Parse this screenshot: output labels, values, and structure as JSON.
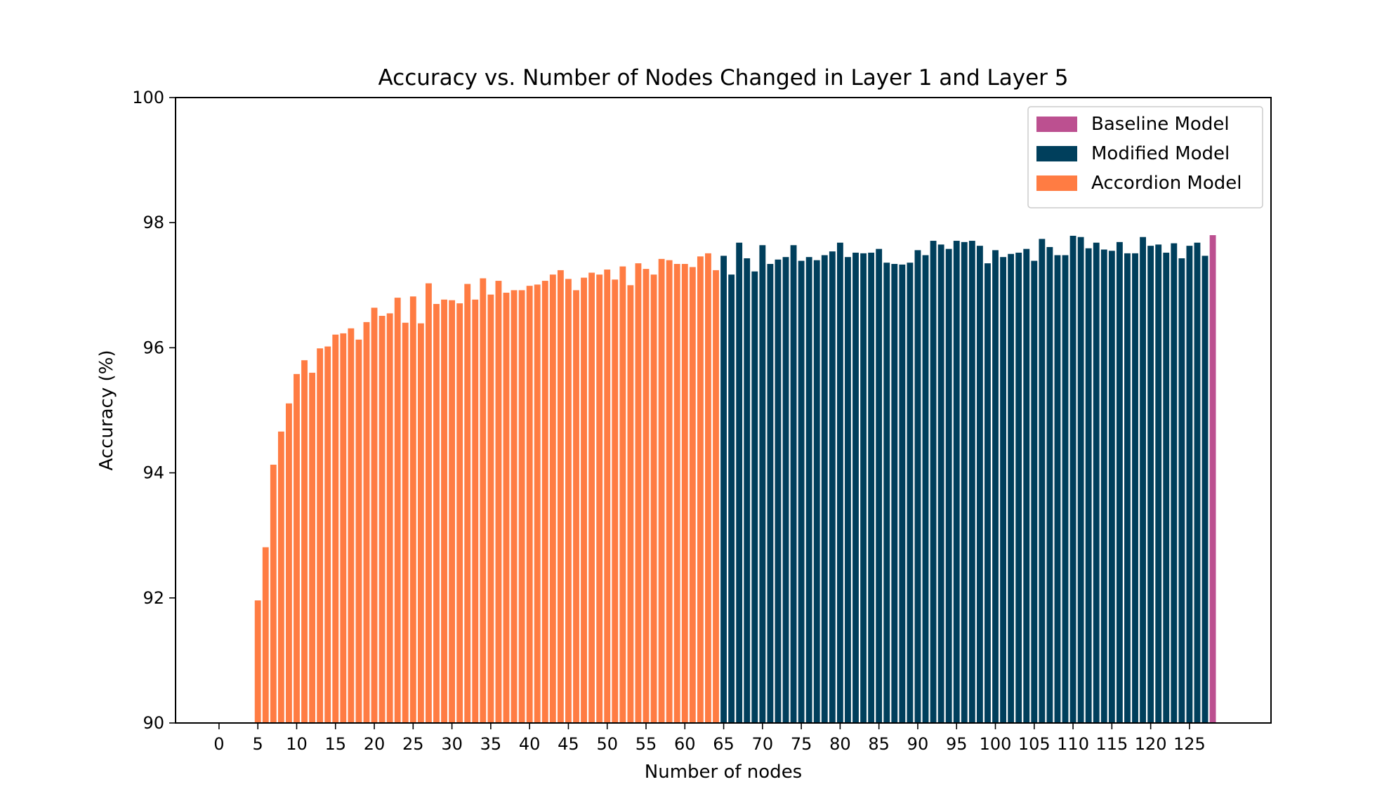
{
  "chart_data": {
    "type": "bar",
    "title": "Accuracy vs. Number of Nodes Changed in Layer 1 and Layer 5",
    "xlabel": "Number of nodes",
    "ylabel": "Accuracy (%)",
    "ylim": [
      90,
      100
    ],
    "xlim": [
      -5.6,
      135.5
    ],
    "xticks": [
      0,
      5,
      10,
      15,
      20,
      25,
      30,
      35,
      40,
      45,
      50,
      55,
      60,
      65,
      70,
      75,
      80,
      85,
      90,
      95,
      100,
      105,
      110,
      115,
      120,
      125
    ],
    "yticks": [
      90,
      92,
      94,
      96,
      98,
      100
    ],
    "grid": false,
    "legend_position": "top-right",
    "series": [
      {
        "name": "Baseline Model",
        "color": "#bc5090",
        "x": [
          128
        ],
        "values": [
          97.8
        ]
      },
      {
        "name": "Modified Model",
        "color": "#003f5c",
        "x": [
          65,
          66,
          67,
          68,
          69,
          70,
          71,
          72,
          73,
          74,
          75,
          76,
          77,
          78,
          79,
          80,
          81,
          82,
          83,
          84,
          85,
          86,
          87,
          88,
          89,
          90,
          91,
          92,
          93,
          94,
          95,
          96,
          97,
          98,
          99,
          100,
          101,
          102,
          103,
          104,
          105,
          106,
          107,
          108,
          109,
          110,
          111,
          112,
          113,
          114,
          115,
          116,
          117,
          118,
          119,
          120,
          121,
          122,
          123,
          124,
          125,
          126,
          127
        ],
        "values": [
          97.47,
          97.17,
          97.68,
          97.43,
          97.22,
          97.64,
          97.34,
          97.41,
          97.45,
          97.64,
          97.39,
          97.45,
          97.4,
          97.48,
          97.54,
          97.68,
          97.45,
          97.52,
          97.51,
          97.52,
          97.58,
          97.36,
          97.34,
          97.33,
          97.36,
          97.56,
          97.48,
          97.71,
          97.65,
          97.58,
          97.71,
          97.69,
          97.71,
          97.63,
          97.35,
          97.56,
          97.45,
          97.5,
          97.52,
          97.58,
          97.39,
          97.74,
          97.61,
          97.48,
          97.48,
          97.79,
          97.77,
          97.59,
          97.68,
          97.57,
          97.55,
          97.69,
          97.51,
          97.51,
          97.77,
          97.63,
          97.65,
          97.52,
          97.67,
          97.43,
          97.63,
          97.68,
          97.47
        ]
      },
      {
        "name": "Accordion Model",
        "color": "#ff7c43",
        "x": [
          5,
          6,
          7,
          8,
          9,
          10,
          11,
          12,
          13,
          14,
          15,
          16,
          17,
          18,
          19,
          20,
          21,
          22,
          23,
          24,
          25,
          26,
          27,
          28,
          29,
          30,
          31,
          32,
          33,
          34,
          35,
          36,
          37,
          38,
          39,
          40,
          41,
          42,
          43,
          44,
          45,
          46,
          47,
          48,
          49,
          50,
          51,
          52,
          53,
          54,
          55,
          56,
          57,
          58,
          59,
          60,
          61,
          62,
          63,
          64
        ],
        "values": [
          91.96,
          92.81,
          94.13,
          94.66,
          95.11,
          95.58,
          95.8,
          95.6,
          95.99,
          96.02,
          96.21,
          96.23,
          96.31,
          96.13,
          96.41,
          96.64,
          96.51,
          96.55,
          96.8,
          96.4,
          96.82,
          96.39,
          97.03,
          96.7,
          96.77,
          96.76,
          96.71,
          97.02,
          96.77,
          97.11,
          96.85,
          97.07,
          96.88,
          96.92,
          96.92,
          96.99,
          97.01,
          97.07,
          97.17,
          97.24,
          97.1,
          96.92,
          97.12,
          97.2,
          97.17,
          97.25,
          97.09,
          97.3,
          97.0,
          97.35,
          97.26,
          97.17,
          97.42,
          97.4,
          97.34,
          97.34,
          97.29,
          97.46,
          97.51,
          97.24
        ]
      }
    ]
  }
}
